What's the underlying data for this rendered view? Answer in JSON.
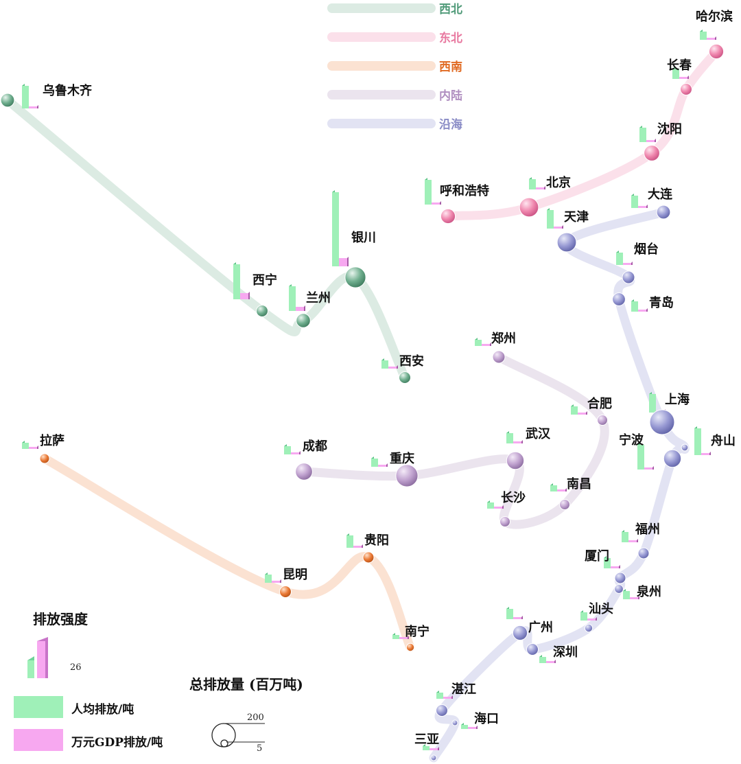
{
  "regions": [
    {
      "key": "xibei",
      "name": "西北",
      "color": "#4f9a78",
      "path_color": "#dcebe3",
      "cities": [
        "乌鲁木齐",
        "西宁",
        "兰州",
        "银川",
        "西安"
      ]
    },
    {
      "key": "dongbei",
      "name": "东北",
      "color": "#e879a0",
      "path_color": "#fbe0ea",
      "cities": [
        "呼和浩特",
        "北京",
        "沈阳",
        "长春",
        "哈尔滨"
      ]
    },
    {
      "key": "xinan",
      "name": "西南",
      "color": "#e06a22",
      "path_color": "#fbe2d2",
      "cities": [
        "拉萨",
        "昆明",
        "贵阳",
        "南宁"
      ]
    },
    {
      "key": "neilu",
      "name": "内陆",
      "color": "#b08fc0",
      "path_color": "#ebe4ee",
      "cities": [
        "成都",
        "重庆",
        "武汉",
        "长沙",
        "南昌",
        "合肥",
        "郑州"
      ]
    },
    {
      "key": "yanhai",
      "name": "沿海",
      "color": "#8a8cc6",
      "path_color": "#e2e3f3",
      "cities": [
        "大连",
        "天津",
        "烟台",
        "青岛",
        "上海",
        "舟山",
        "宁波",
        "福州",
        "厦门",
        "泉州",
        "汕头",
        "深圳",
        "广州",
        "湛江",
        "海口",
        "三亚"
      ]
    }
  ],
  "cities": [
    {
      "name": "乌鲁木齐",
      "region": "xibei",
      "total": 60,
      "per_capita": 11,
      "per_gdp": 1
    },
    {
      "name": "西宁",
      "region": "xibei",
      "total": 45,
      "per_capita": 17,
      "per_gdp": 3
    },
    {
      "name": "兰州",
      "region": "xibei",
      "total": 65,
      "per_capita": 12,
      "per_gdp": 2
    },
    {
      "name": "银川",
      "region": "xibei",
      "total": 140,
      "per_capita": 36,
      "per_gdp": 4
    },
    {
      "name": "西安",
      "region": "xibei",
      "total": 45,
      "per_capita": 4,
      "per_gdp": 1
    },
    {
      "name": "呼和浩特",
      "region": "dongbei",
      "total": 70,
      "per_capita": 12,
      "per_gdp": 1
    },
    {
      "name": "北京",
      "region": "dongbei",
      "total": 120,
      "per_capita": 5,
      "per_gdp": 0.5
    },
    {
      "name": "沈阳",
      "region": "dongbei",
      "total": 80,
      "per_capita": 7,
      "per_gdp": 1
    },
    {
      "name": "长春",
      "region": "dongbei",
      "total": 45,
      "per_capita": 5,
      "per_gdp": 0.5
    },
    {
      "name": "哈尔滨",
      "region": "dongbei",
      "total": 70,
      "per_capita": 4,
      "per_gdp": 0.5
    },
    {
      "name": "拉萨",
      "region": "xinan",
      "total": 30,
      "per_capita": 3,
      "per_gdp": 0.5
    },
    {
      "name": "昆明",
      "region": "xinan",
      "total": 45,
      "per_capita": 4,
      "per_gdp": 1
    },
    {
      "name": "贵阳",
      "region": "xinan",
      "total": 40,
      "per_capita": 6,
      "per_gdp": 1
    },
    {
      "name": "南宁",
      "region": "xinan",
      "total": 20,
      "per_capita": 2,
      "per_gdp": 0.5
    },
    {
      "name": "成都",
      "region": "neilu",
      "total": 95,
      "per_capita": 4,
      "per_gdp": 0.5
    },
    {
      "name": "重庆",
      "region": "neilu",
      "total": 160,
      "per_capita": 4,
      "per_gdp": 0.5
    },
    {
      "name": "武汉",
      "region": "neilu",
      "total": 100,
      "per_capita": 5,
      "per_gdp": 0.5
    },
    {
      "name": "长沙",
      "region": "neilu",
      "total": 35,
      "per_capita": 3,
      "per_gdp": 0.5
    },
    {
      "name": "南昌",
      "region": "neilu",
      "total": 35,
      "per_capita": 3,
      "per_gdp": 0.5
    },
    {
      "name": "合肥",
      "region": "neilu",
      "total": 35,
      "per_capita": 4,
      "per_gdp": 0.5
    },
    {
      "name": "郑州",
      "region": "neilu",
      "total": 50,
      "per_capita": 3,
      "per_gdp": 0.5
    },
    {
      "name": "大连",
      "region": "yanhai",
      "total": 60,
      "per_capita": 6,
      "per_gdp": 0.5
    },
    {
      "name": "天津",
      "region": "yanhai",
      "total": 120,
      "per_capita": 9,
      "per_gdp": 1
    },
    {
      "name": "烟台",
      "region": "yanhai",
      "total": 50,
      "per_capita": 6,
      "per_gdp": 0.5
    },
    {
      "name": "青岛",
      "region": "yanhai",
      "total": 55,
      "per_capita": 5,
      "per_gdp": 0.5
    },
    {
      "name": "上海",
      "region": "yanhai",
      "total": 200,
      "per_capita": 9,
      "per_gdp": 0.5
    },
    {
      "name": "舟山",
      "region": "yanhai",
      "total": 15,
      "per_capita": 13,
      "per_gdp": 1
    },
    {
      "name": "宁波",
      "region": "yanhai",
      "total": 100,
      "per_capita": 12,
      "per_gdp": 1
    },
    {
      "name": "福州",
      "region": "yanhai",
      "total": 40,
      "per_capita": 5,
      "per_gdp": 0.5
    },
    {
      "name": "厦门",
      "region": "yanhai",
      "total": 40,
      "per_capita": 5,
      "per_gdp": 0.5
    },
    {
      "name": "泉州",
      "region": "yanhai",
      "total": 25,
      "per_capita": 4,
      "per_gdp": 0.5
    },
    {
      "name": "汕头",
      "region": "yanhai",
      "total": 20,
      "per_capita": 4,
      "per_gdp": 0.5
    },
    {
      "name": "深圳",
      "region": "yanhai",
      "total": 45,
      "per_capita": 3,
      "per_gdp": 0.5
    },
    {
      "name": "广州",
      "region": "yanhai",
      "total": 70,
      "per_capita": 5,
      "per_gdp": 0.5
    },
    {
      "name": "湛江",
      "region": "yanhai",
      "total": 45,
      "per_capita": 3,
      "per_gdp": 0.5
    },
    {
      "name": "海口",
      "region": "yanhai",
      "total": 10,
      "per_capita": 2,
      "per_gdp": 0.5
    },
    {
      "name": "三亚",
      "region": "yanhai",
      "total": 10,
      "per_capita": 2,
      "per_gdp": 0.5
    }
  ],
  "legend": {
    "intensity_title": "排放强度",
    "intensity_value": "26",
    "per_capita_label": "人均排放/吨",
    "per_gdp_label": "万元GDP排放/吨",
    "total_title": "总排放量 (百万吨)",
    "total_large": "200",
    "total_small": "5",
    "bar_colors": {
      "per_capita": "#9ff0b8",
      "per_gdp": "#f7a8f0"
    }
  }
}
